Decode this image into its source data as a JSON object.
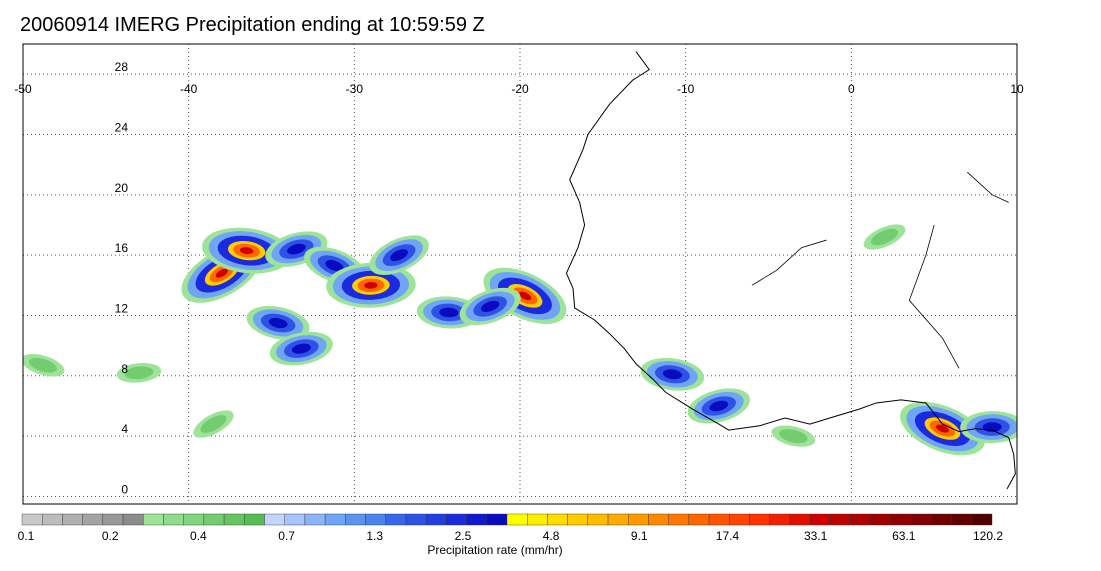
{
  "title": "20060914 IMERG Precipitation ending at 10:59:59 Z",
  "map": {
    "lon_ticks": [
      "-50",
      "-40",
      "-30",
      "-20",
      "-10",
      "0",
      "10"
    ],
    "lat_ticks": [
      "28",
      "24",
      "20",
      "16",
      "12",
      "8",
      "4",
      "0"
    ],
    "lon_range": [
      -50,
      10
    ],
    "lat_range": [
      -0.5,
      30
    ],
    "gridlines": "dotted",
    "coastline_color": "#000000"
  },
  "colorbar": {
    "label": "Precipitation rate (mm/hr)",
    "tick_labels": [
      "0.1",
      "0.2",
      "0.4",
      "0.7",
      "1.3",
      "2.5",
      "4.8",
      "9.1",
      "17.4",
      "33.1",
      "63.1",
      "120.2"
    ],
    "colors": [
      "#c8c8c8",
      "#bcbcbc",
      "#b0b0b0",
      "#a4a4a4",
      "#989898",
      "#8c8c8c",
      "#9ee39a",
      "#90dc8c",
      "#82d47e",
      "#74cc70",
      "#66c462",
      "#58bc54",
      "#c4d4ff",
      "#a8c4fc",
      "#8cb4f8",
      "#70a4f4",
      "#5c94f0",
      "#4a84ec",
      "#3a66ea",
      "#2e52e6",
      "#223ee2",
      "#1a2ade",
      "#1018d2",
      "#0a0ac0",
      "#ffff00",
      "#ffee00",
      "#ffdd00",
      "#ffcc00",
      "#ffbb00",
      "#ffaa00",
      "#ff9900",
      "#ff8800",
      "#ff7700",
      "#ff6600",
      "#ff5500",
      "#ff4400",
      "#ff3300",
      "#f02000",
      "#e01000",
      "#d00000",
      "#c00000",
      "#b00000",
      "#a00000",
      "#900000",
      "#800000",
      "#700000",
      "#600000",
      "#500000"
    ]
  },
  "precip_cells": [
    {
      "lon": -38.0,
      "lat": 14.8,
      "rate": "heavy"
    },
    {
      "lon": -36.5,
      "lat": 16.3,
      "rate": "heavy"
    },
    {
      "lon": -33.5,
      "lat": 16.4,
      "rate": "moderate"
    },
    {
      "lon": -31.2,
      "lat": 15.3,
      "rate": "moderate"
    },
    {
      "lon": -29.0,
      "lat": 14.0,
      "rate": "heavy"
    },
    {
      "lon": -27.3,
      "lat": 16.0,
      "rate": "moderate"
    },
    {
      "lon": -34.6,
      "lat": 11.5,
      "rate": "moderate"
    },
    {
      "lon": -33.2,
      "lat": 9.8,
      "rate": "moderate"
    },
    {
      "lon": -19.7,
      "lat": 13.3,
      "rate": "heavy"
    },
    {
      "lon": -24.3,
      "lat": 12.2,
      "rate": "moderate"
    },
    {
      "lon": -21.8,
      "lat": 12.6,
      "rate": "moderate"
    },
    {
      "lon": -48.8,
      "lat": 8.7,
      "rate": "light"
    },
    {
      "lon": -43.0,
      "lat": 8.2,
      "rate": "light"
    },
    {
      "lon": -38.5,
      "lat": 4.8,
      "rate": "light"
    },
    {
      "lon": -10.8,
      "lat": 8.1,
      "rate": "moderate"
    },
    {
      "lon": -8.0,
      "lat": 6.0,
      "rate": "moderate"
    },
    {
      "lon": 5.5,
      "lat": 4.5,
      "rate": "heavy"
    },
    {
      "lon": 8.5,
      "lat": 4.6,
      "rate": "moderate"
    },
    {
      "lon": 2.0,
      "lat": 17.2,
      "rate": "light"
    },
    {
      "lon": -3.5,
      "lat": 4.0,
      "rate": "light"
    }
  ]
}
